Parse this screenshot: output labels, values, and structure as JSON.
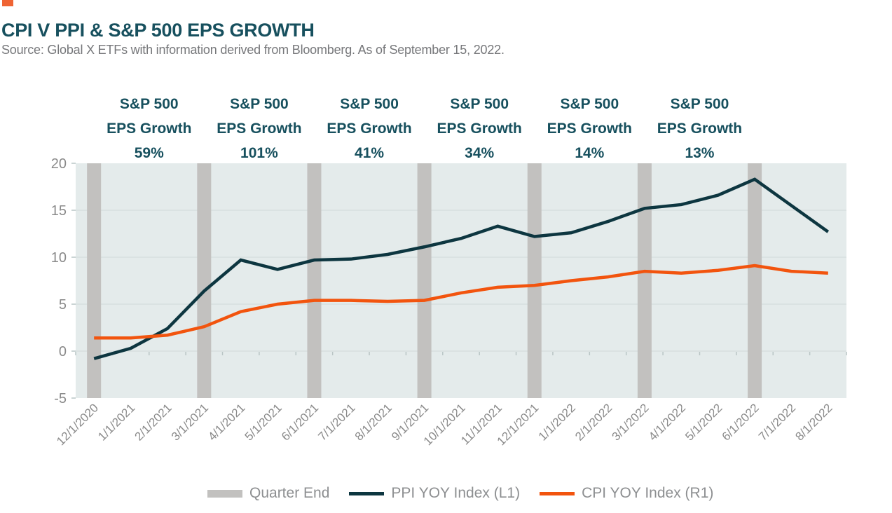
{
  "header": {
    "title": "CPI V PPI & S&P 500 EPS GROWTH",
    "source": "Source: Global X ETFs with information derived from Bloomberg. As of September 15, 2022."
  },
  "colors": {
    "brand_square": "#ef6434",
    "title": "#17505e",
    "source_text": "#76777a",
    "plot_bg": "#e4ebeb",
    "gridline": "#d6dfdf",
    "quarter_bar": "#c2c1bf",
    "axis_label": "#8a8a8a",
    "axis_tick": "#b9c5c5",
    "annotation_text": "#17505e",
    "legend_text": "#8d8f91",
    "ppi_line": "#0d3640",
    "cpi_line": "#f2540e"
  },
  "chart_data": {
    "type": "line",
    "title": "CPI V PPI & S&P 500 EPS GROWTH",
    "xlabel": "",
    "ylabel": "",
    "ylim": [
      -5,
      20
    ],
    "y_ticks": [
      -5,
      0,
      5,
      10,
      15,
      20
    ],
    "grid": "horizontal",
    "legend_position": "bottom",
    "categories": [
      "12/1/2020",
      "1/1/2021",
      "2/1/2021",
      "3/1/2021",
      "4/1/2021",
      "5/1/2021",
      "6/1/2021",
      "7/1/2021",
      "8/1/2021",
      "9/1/2021",
      "10/1/2021",
      "11/1/2021",
      "12/1/2021",
      "1/1/2022",
      "2/1/2022",
      "3/1/2022",
      "4/1/2022",
      "5/1/2022",
      "6/1/2022",
      "7/1/2022",
      "8/1/2022"
    ],
    "series": [
      {
        "name": "PPI YOY Index (L1)",
        "color": "#0d3640",
        "values": [
          -0.8,
          0.3,
          2.4,
          6.4,
          9.7,
          8.7,
          9.7,
          9.8,
          10.3,
          11.1,
          12.0,
          13.3,
          12.2,
          12.6,
          13.8,
          15.2,
          15.6,
          16.6,
          18.3,
          15.5,
          12.7
        ]
      },
      {
        "name": "CPI YOY Index (R1)",
        "color": "#f2540e",
        "values": [
          1.4,
          1.4,
          1.7,
          2.6,
          4.2,
          5.0,
          5.4,
          5.4,
          5.3,
          5.4,
          6.2,
          6.8,
          7.0,
          7.5,
          7.9,
          8.5,
          8.3,
          8.6,
          9.1,
          8.5,
          8.3
        ]
      }
    ],
    "quarter_end_months": [
      "12/1/2020",
      "3/1/2021",
      "6/1/2021",
      "9/1/2021",
      "12/1/2021",
      "3/1/2022",
      "6/1/2022"
    ],
    "annotations": [
      {
        "line1": "S&P 500",
        "line2": "EPS Growth",
        "value": "59%"
      },
      {
        "line1": "S&P 500",
        "line2": "EPS Growth",
        "value": "101%"
      },
      {
        "line1": "S&P 500",
        "line2": "EPS Growth",
        "value": "41%"
      },
      {
        "line1": "S&P 500",
        "line2": "EPS Growth",
        "value": "34%"
      },
      {
        "line1": "S&P 500",
        "line2": "EPS Growth",
        "value": "14%"
      },
      {
        "line1": "S&P 500",
        "line2": "EPS Growth",
        "value": "13%"
      }
    ],
    "legend": [
      {
        "label": "Quarter End",
        "swatch": "bar",
        "color": "#c2c1bf"
      },
      {
        "label": "PPI YOY Index (L1)",
        "swatch": "line",
        "color": "#0d3640"
      },
      {
        "label": "CPI YOY Index (R1)",
        "swatch": "line",
        "color": "#f2540e"
      }
    ]
  }
}
